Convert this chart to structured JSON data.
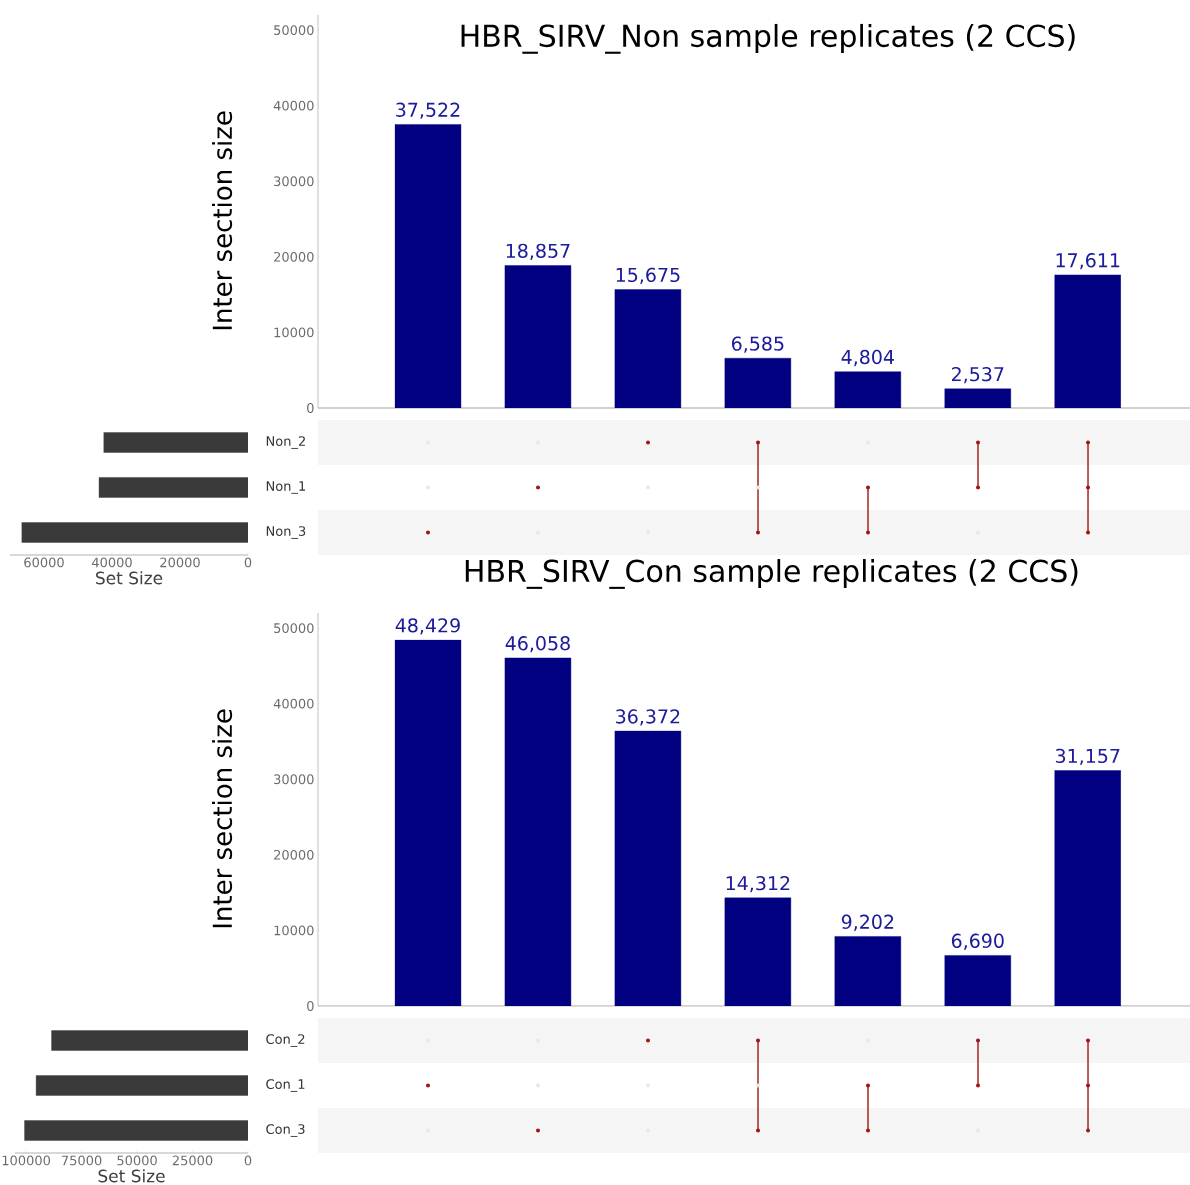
{
  "chart_data": [
    {
      "type": "bar",
      "title": "HBR_SIRV_Non sample replicates (2 CCS)",
      "ylabel": "Inter section size",
      "categories": [
        null,
        null,
        null,
        null,
        null,
        null,
        null
      ],
      "values": [
        37522,
        18857,
        15675,
        6585,
        4804,
        2537,
        17611
      ],
      "value_labels": [
        "37,522",
        "18,857",
        "15,675",
        "6,585",
        "4,804",
        "2,537",
        "17,611"
      ],
      "color": "#000080",
      "ylim": [
        0,
        52000
      ],
      "yticks": [
        0,
        10000,
        20000,
        30000,
        40000,
        50000
      ]
    },
    {
      "type": "bar",
      "orientation": "horizontal",
      "xlabel": "Set Size",
      "categories": [
        "Non_2",
        "Non_1",
        "Non_3"
      ],
      "values": [
        42408,
        43809,
        66522
      ],
      "color": "#3a3a3a",
      "xlim": [
        70000,
        0
      ],
      "xticks": [
        60000,
        40000,
        20000,
        0
      ]
    },
    {
      "type": "bar",
      "title": "HBR_SIRV_Con sample replicates (2 CCS)",
      "ylabel": "Inter section size",
      "categories": [
        null,
        null,
        null,
        null,
        null,
        null,
        null
      ],
      "values": [
        48429,
        46058,
        36372,
        14312,
        9202,
        6690,
        31157
      ],
      "value_labels": [
        "48,429",
        "46,058",
        "36,372",
        "14,312",
        "9,202",
        "6,690",
        "31,157"
      ],
      "color": "#000080",
      "ylim": [
        0,
        52000
      ],
      "yticks": [
        0,
        10000,
        20000,
        30000,
        40000,
        50000
      ]
    },
    {
      "type": "bar",
      "orientation": "horizontal",
      "xlabel": "Set Size",
      "categories": [
        "Con_2",
        "Con_1",
        "Con_3"
      ],
      "values": [
        88531,
        95478,
        100729
      ],
      "color": "#3a3a3a",
      "xlim": [
        105000,
        0
      ],
      "xticks": [
        100000,
        75000,
        50000,
        25000,
        0
      ]
    }
  ]
}
